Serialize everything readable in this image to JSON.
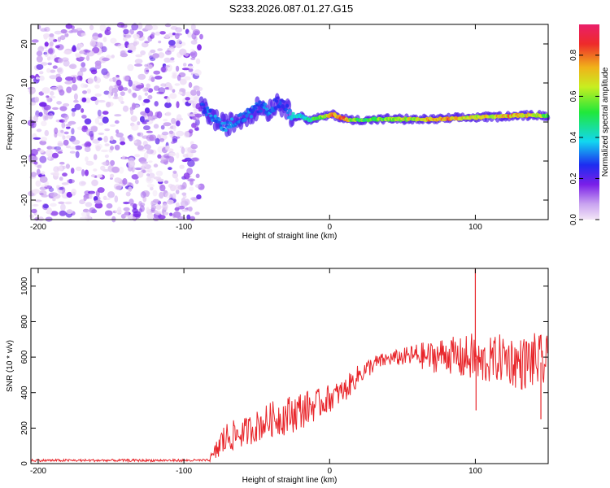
{
  "title": "S233.2026.087.01.27.G15",
  "chart_data": [
    {
      "type": "heatmap",
      "xlabel": "Height of straight line (km)",
      "ylabel": "Frequency (Hz)",
      "xlim": [
        -205,
        150
      ],
      "ylim": [
        -25,
        25
      ],
      "xticks": [
        -200,
        -100,
        0,
        100
      ],
      "yticks": [
        -20,
        -10,
        0,
        10,
        20
      ],
      "noise_region_x": [
        -205,
        -88
      ],
      "ridge": {
        "x": [
          -88,
          -80,
          -72,
          -66,
          -60,
          -54,
          -48,
          -42,
          -36,
          -30,
          -27,
          -20,
          -14,
          -8,
          -2,
          2,
          8,
          14,
          20,
          40,
          60,
          80,
          100,
          120,
          140,
          150
        ],
        "frequency": [
          4,
          1,
          -1,
          0,
          1,
          2.5,
          4,
          3,
          5,
          4,
          1.5,
          1.5,
          0.5,
          1,
          1.5,
          2,
          1,
          0.5,
          0.5,
          0.8,
          0.6,
          0.8,
          1.2,
          1.5,
          1.8,
          1.5
        ],
        "amplitude": [
          0.3,
          0.35,
          0.35,
          0.35,
          0.3,
          0.35,
          0.3,
          0.35,
          0.3,
          0.3,
          0.4,
          0.45,
          0.5,
          0.6,
          0.7,
          0.85,
          0.9,
          0.7,
          0.6,
          0.65,
          0.75,
          0.85,
          0.7,
          0.8,
          0.75,
          0.6
        ]
      },
      "colorbar": {
        "label": "Normalized spectral amplitude",
        "range": [
          0,
          0.95
        ],
        "ticks": [
          "0.0",
          "0.2",
          "0.4",
          "0.6",
          "0.8"
        ]
      }
    },
    {
      "type": "line",
      "xlabel": "Height of straight line (km)",
      "ylabel": "SNR (10 * v/v)",
      "xlim": [
        -205,
        150
      ],
      "ylim": [
        0,
        1100
      ],
      "xticks": [
        -200,
        -100,
        0,
        100
      ],
      "yticks": [
        0,
        200,
        400,
        600,
        800,
        1000
      ],
      "color": "#e8252a",
      "series": [
        {
          "name": "SNR",
          "x": [
            -205,
            -180,
            -150,
            -120,
            -100,
            -85,
            -80,
            -75,
            -70,
            -60,
            -50,
            -40,
            -30,
            -20,
            -10,
            -5,
            0,
            5,
            10,
            20,
            30,
            40,
            50,
            60,
            70,
            80,
            90,
            98,
            100,
            102,
            110,
            120,
            130,
            140,
            150
          ],
          "trend": [
            20,
            20,
            20,
            20,
            20,
            25,
            40,
            110,
            150,
            170,
            210,
            250,
            270,
            300,
            330,
            345,
            370,
            390,
            410,
            500,
            560,
            590,
            600,
            610,
            600,
            620,
            590,
            600,
            600,
            560,
            580,
            600,
            560,
            580,
            560
          ],
          "spread": [
            10,
            10,
            10,
            10,
            10,
            10,
            30,
            100,
            90,
            80,
            90,
            100,
            110,
            110,
            90,
            80,
            80,
            70,
            70,
            60,
            50,
            40,
            50,
            70,
            90,
            100,
            120,
            140,
            150,
            130,
            130,
            140,
            150,
            160,
            160
          ],
          "spikes": [
            {
              "x": 100,
              "y": 1100
            },
            {
              "x": 100.5,
              "y": 300
            },
            {
              "x": 145,
              "y": 250
            }
          ]
        }
      ]
    }
  ]
}
